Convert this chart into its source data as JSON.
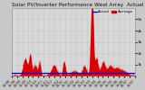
{
  "title": "Solar PV/Inverter Performance West Array  Actual & Average Power Output",
  "title_fontsize": 4.2,
  "bg_color": "#c8c8c8",
  "plot_bg_color": "#d8d8d8",
  "grid_color": "#aaaaaa",
  "actual_color": "#dd0000",
  "average_color": "#0000cc",
  "legend_actual_label": "Actual",
  "legend_average_label": "Average",
  "title_color": "#111111",
  "tick_color": "#111111",
  "ylim": [
    0,
    6000
  ],
  "yticks": [
    1000,
    2000,
    3000,
    4000,
    5000
  ],
  "ytick_labels": [
    "1k",
    "2k",
    "3k",
    "4k",
    "5k"
  ],
  "average_value": 280,
  "n_points": 730
}
